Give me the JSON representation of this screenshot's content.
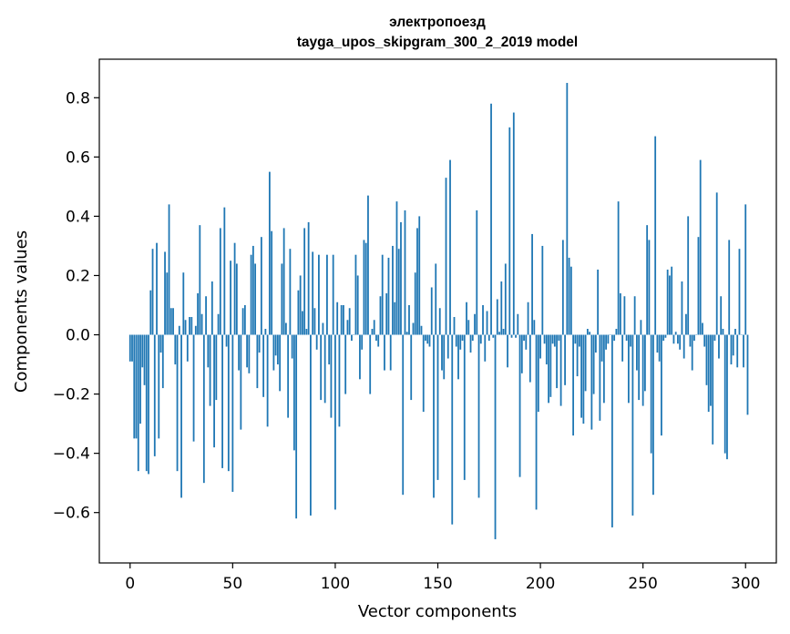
{
  "chart_data": {
    "type": "bar",
    "title": "электропоезд",
    "subtitle": "tayga_upos_skipgram_300_2_2019 model",
    "xlabel": "Vector components",
    "ylabel": "Components values",
    "xlim": [
      -15,
      315
    ],
    "ylim": [
      -0.77,
      0.93
    ],
    "xticks": [
      0,
      50,
      100,
      150,
      200,
      250,
      300
    ],
    "xtick_labels": [
      "0",
      "50",
      "100",
      "150",
      "200",
      "250",
      "300"
    ],
    "yticks": [
      -0.6,
      -0.4,
      -0.2,
      0.0,
      0.2,
      0.4,
      0.6,
      0.8
    ],
    "ytick_labels": [
      "−0.6",
      "−0.4",
      "−0.2",
      "0.0",
      "0.2",
      "0.4",
      "0.6",
      "0.8"
    ],
    "color": "#1f77b4",
    "grid": false,
    "values": [
      -0.09,
      -0.09,
      -0.35,
      -0.35,
      -0.46,
      -0.3,
      -0.11,
      -0.17,
      -0.46,
      -0.47,
      0.15,
      0.29,
      -0.41,
      0.31,
      -0.35,
      -0.06,
      -0.18,
      0.28,
      0.21,
      0.44,
      0.09,
      0.09,
      -0.1,
      -0.46,
      0.03,
      -0.55,
      0.21,
      0.05,
      -0.09,
      0.06,
      0.06,
      -0.36,
      0.03,
      0.14,
      0.37,
      0.07,
      -0.5,
      0.13,
      -0.11,
      -0.24,
      0.18,
      -0.38,
      -0.22,
      0.07,
      0.36,
      -0.45,
      0.43,
      -0.04,
      -0.46,
      0.25,
      -0.53,
      0.31,
      0.24,
      -0.12,
      -0.32,
      0.09,
      0.1,
      -0.11,
      -0.13,
      0.27,
      0.3,
      0.24,
      -0.18,
      -0.06,
      0.33,
      -0.21,
      0.02,
      -0.31,
      0.55,
      0.35,
      -0.12,
      -0.07,
      -0.1,
      -0.19,
      0.24,
      0.36,
      0.04,
      -0.28,
      0.29,
      -0.08,
      -0.39,
      -0.62,
      0.15,
      0.2,
      0.08,
      0.36,
      0.02,
      0.38,
      -0.61,
      0.28,
      0.09,
      -0.05,
      0.27,
      -0.22,
      0.04,
      -0.23,
      0.27,
      -0.1,
      -0.28,
      0.27,
      -0.59,
      0.11,
      -0.31,
      0.1,
      0.1,
      -0.2,
      0.05,
      0.09,
      -0.02,
      0.0,
      0.27,
      0.2,
      -0.15,
      -0.05,
      0.32,
      0.31,
      0.47,
      -0.2,
      0.02,
      0.05,
      -0.02,
      -0.04,
      0.13,
      0.27,
      -0.12,
      0.14,
      0.26,
      -0.12,
      0.3,
      0.11,
      0.45,
      0.29,
      0.38,
      -0.54,
      0.42,
      0.01,
      0.1,
      -0.22,
      0.04,
      0.21,
      0.36,
      0.4,
      0.03,
      -0.26,
      -0.02,
      -0.03,
      -0.04,
      0.16,
      -0.55,
      0.24,
      -0.49,
      0.09,
      -0.12,
      -0.15,
      0.53,
      -0.08,
      0.59,
      -0.64,
      0.06,
      -0.04,
      -0.15,
      -0.05,
      -0.02,
      -0.49,
      0.11,
      0.05,
      -0.06,
      -0.02,
      0.07,
      0.42,
      -0.55,
      -0.03,
      0.1,
      -0.09,
      0.08,
      -0.02,
      0.78,
      -0.01,
      -0.69,
      0.12,
      0.01,
      0.18,
      0.02,
      0.24,
      -0.11,
      0.7,
      -0.01,
      0.75,
      -0.01,
      0.07,
      -0.48,
      -0.13,
      -0.02,
      -0.05,
      0.11,
      -0.16,
      0.34,
      0.05,
      -0.59,
      -0.26,
      -0.08,
      0.3,
      -0.03,
      -0.1,
      -0.23,
      -0.21,
      -0.03,
      -0.04,
      -0.18,
      -0.02,
      -0.24,
      0.32,
      -0.17,
      0.85,
      0.26,
      0.23,
      -0.34,
      -0.03,
      -0.14,
      -0.04,
      -0.28,
      -0.3,
      -0.19,
      0.02,
      0.01,
      -0.32,
      -0.2,
      -0.06,
      0.22,
      -0.29,
      -0.09,
      -0.23,
      -0.05,
      -0.03,
      0.0,
      -0.65,
      -0.02,
      0.02,
      0.45,
      0.14,
      -0.09,
      0.13,
      -0.02,
      -0.23,
      -0.04,
      -0.61,
      0.13,
      -0.12,
      -0.22,
      0.05,
      -0.24,
      -0.19,
      0.37,
      0.32,
      -0.4,
      -0.54,
      0.67,
      -0.06,
      -0.09,
      -0.34,
      -0.02,
      -0.01,
      0.22,
      0.2,
      0.23,
      -0.03,
      0.01,
      -0.03,
      -0.05,
      0.18,
      -0.08,
      0.07,
      0.4,
      -0.04,
      -0.12,
      -0.02,
      0.0,
      0.33,
      0.59,
      0.04,
      -0.04,
      -0.17,
      -0.26,
      -0.24,
      -0.37,
      -0.02,
      0.48,
      -0.08,
      0.13,
      0.02,
      -0.4,
      -0.42,
      0.32,
      -0.1,
      -0.07,
      0.02,
      -0.11,
      0.29,
      0.0,
      -0.11,
      0.44,
      -0.27
    ]
  }
}
